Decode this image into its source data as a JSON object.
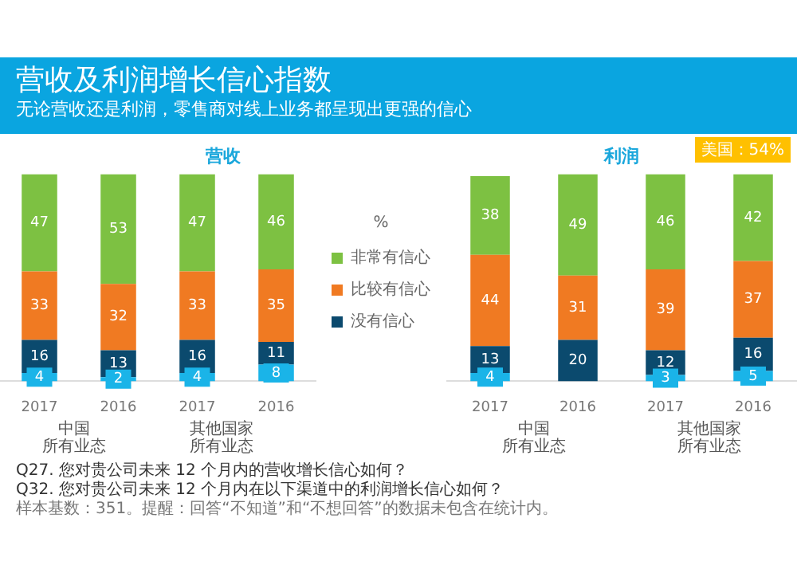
{
  "chart_data": [
    {
      "type": "other",
      "title": "营收及利润增长信心指数",
      "subtitle": "无论营收还是利润，零售商对线上业务都呈现出更强的信心",
      "annotations": [
        "Q27. 您对贵公司未来 12 个月内的营收增长信心如何？",
        "Q32. 您对贵公司未来 12 个月内在以下渠道中的利润增长信心如何？",
        "样本基数：351。提醒：回答“不知道”和“不想回答”的数据未包含在统计内。"
      ]
    },
    {
      "type": "bar",
      "title": "营收",
      "stacked": true,
      "data_labels": true,
      "legend": "right",
      "legend_title": "%",
      "categories": [
        "2017",
        "2016",
        "2017",
        "2016"
      ],
      "annotations": [
        "中国",
        "所有业态",
        "其他国家",
        "所有业态"
      ],
      "series": [
        {
          "color": "#1ab4e8",
          "values": [
            4,
            2,
            4,
            8
          ]
        },
        {
          "name": "没有信心",
          "color": "#0b4a6e",
          "values": [
            16,
            13,
            16,
            11
          ]
        },
        {
          "name": "比较有信心",
          "color": "#f07a22",
          "values": [
            33,
            32,
            33,
            35
          ]
        },
        {
          "name": "非常有信心",
          "color": "#7dc142",
          "values": [
            47,
            53,
            47,
            46
          ]
        }
      ]
    },
    {
      "type": "bar",
      "title": "利润",
      "stacked": true,
      "data_labels": true,
      "categories": [
        "2017",
        "2016",
        "2017",
        "2016"
      ],
      "annotations": [
        "中国",
        "所有业态",
        "其他国家",
        "所有业态",
        "美国：54%"
      ],
      "series": [
        {
          "color": "#1ab4e8",
          "values": [
            4,
            null,
            3,
            5
          ]
        },
        {
          "color": "#0b4a6e",
          "values": [
            13,
            20,
            12,
            16
          ]
        },
        {
          "color": "#f07a22",
          "values": [
            44,
            31,
            39,
            37
          ]
        },
        {
          "color": "#7dc142",
          "values": [
            38,
            49,
            46,
            42
          ]
        }
      ]
    }
  ]
}
